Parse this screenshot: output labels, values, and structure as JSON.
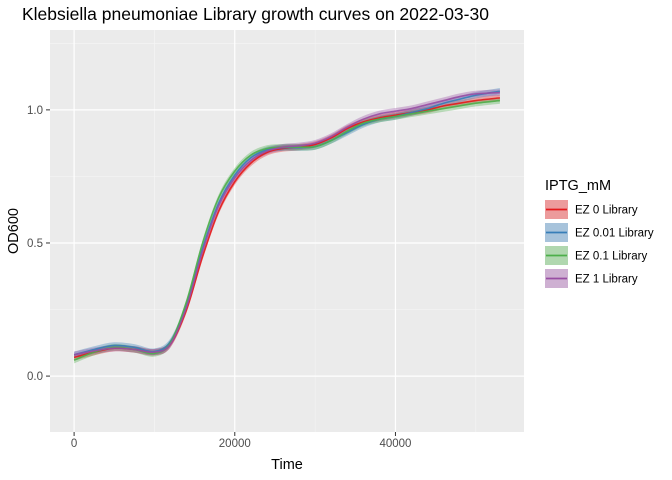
{
  "chart_data": {
    "type": "line",
    "title": "Klebsiella pneumoniae Library growth curves on 2022-03-30",
    "xlabel": "Time",
    "ylabel": "OD600",
    "xlim": [
      -3000,
      56000
    ],
    "ylim": [
      -0.21,
      1.3
    ],
    "x_ticks": [
      0,
      20000,
      40000
    ],
    "x_tick_labels": [
      "0",
      "20000",
      "40000"
    ],
    "y_ticks": [
      0.0,
      0.5,
      1.0
    ],
    "y_tick_labels": [
      "0.0",
      "0.5",
      "1.0"
    ],
    "grid": true,
    "legend": {
      "title": "IPTG_mM",
      "position": "right"
    },
    "series": [
      {
        "name": "EZ 0 Library",
        "color": "#e41a1c",
        "points": [
          [
            0,
            0.07
          ],
          [
            2500,
            0.09
          ],
          [
            5000,
            0.105
          ],
          [
            7500,
            0.1
          ],
          [
            10000,
            0.09
          ],
          [
            12000,
            0.12
          ],
          [
            14000,
            0.25
          ],
          [
            16000,
            0.45
          ],
          [
            18000,
            0.62
          ],
          [
            20000,
            0.73
          ],
          [
            22000,
            0.8
          ],
          [
            24000,
            0.84
          ],
          [
            26000,
            0.855
          ],
          [
            28000,
            0.86
          ],
          [
            30000,
            0.87
          ],
          [
            32000,
            0.895
          ],
          [
            34000,
            0.93
          ],
          [
            36000,
            0.955
          ],
          [
            38000,
            0.97
          ],
          [
            40000,
            0.98
          ],
          [
            42000,
            0.99
          ],
          [
            44000,
            1.0
          ],
          [
            46000,
            1.015
          ],
          [
            48000,
            1.025
          ],
          [
            50000,
            1.035
          ],
          [
            53000,
            1.045
          ]
        ]
      },
      {
        "name": "EZ 0.01 Library",
        "color": "#377eb8",
        "points": [
          [
            0,
            0.08
          ],
          [
            2500,
            0.1
          ],
          [
            5000,
            0.115
          ],
          [
            7500,
            0.108
          ],
          [
            10000,
            0.092
          ],
          [
            12000,
            0.13
          ],
          [
            14000,
            0.27
          ],
          [
            16000,
            0.48
          ],
          [
            18000,
            0.65
          ],
          [
            20000,
            0.755
          ],
          [
            22000,
            0.82
          ],
          [
            24000,
            0.85
          ],
          [
            26000,
            0.858
          ],
          [
            28000,
            0.858
          ],
          [
            30000,
            0.862
          ],
          [
            32000,
            0.885
          ],
          [
            34000,
            0.915
          ],
          [
            36000,
            0.945
          ],
          [
            38000,
            0.965
          ],
          [
            40000,
            0.975
          ],
          [
            42000,
            0.99
          ],
          [
            44000,
            1.005
          ],
          [
            46000,
            1.025
          ],
          [
            48000,
            1.04
          ],
          [
            50000,
            1.055
          ],
          [
            53000,
            1.07
          ]
        ]
      },
      {
        "name": "EZ 0.1 Library",
        "color": "#4daf4a",
        "points": [
          [
            0,
            0.06
          ],
          [
            2500,
            0.09
          ],
          [
            5000,
            0.108
          ],
          [
            7500,
            0.1
          ],
          [
            10000,
            0.085
          ],
          [
            12000,
            0.125
          ],
          [
            14000,
            0.28
          ],
          [
            16000,
            0.5
          ],
          [
            18000,
            0.67
          ],
          [
            20000,
            0.77
          ],
          [
            22000,
            0.83
          ],
          [
            24000,
            0.855
          ],
          [
            26000,
            0.86
          ],
          [
            28000,
            0.86
          ],
          [
            30000,
            0.862
          ],
          [
            32000,
            0.885
          ],
          [
            34000,
            0.92
          ],
          [
            36000,
            0.95
          ],
          [
            38000,
            0.965
          ],
          [
            40000,
            0.975
          ],
          [
            42000,
            0.985
          ],
          [
            44000,
            0.995
          ],
          [
            46000,
            1.005
          ],
          [
            48000,
            1.015
          ],
          [
            50000,
            1.025
          ],
          [
            53000,
            1.035
          ]
        ]
      },
      {
        "name": "EZ 1 Library",
        "color": "#984ea3",
        "points": [
          [
            0,
            0.08
          ],
          [
            2500,
            0.095
          ],
          [
            5000,
            0.105
          ],
          [
            7500,
            0.1
          ],
          [
            10000,
            0.09
          ],
          [
            12000,
            0.12
          ],
          [
            14000,
            0.26
          ],
          [
            16000,
            0.47
          ],
          [
            18000,
            0.64
          ],
          [
            20000,
            0.745
          ],
          [
            22000,
            0.81
          ],
          [
            24000,
            0.845
          ],
          [
            26000,
            0.86
          ],
          [
            28000,
            0.865
          ],
          [
            30000,
            0.875
          ],
          [
            32000,
            0.9
          ],
          [
            34000,
            0.935
          ],
          [
            36000,
            0.965
          ],
          [
            38000,
            0.985
          ],
          [
            40000,
            0.995
          ],
          [
            42000,
            1.005
          ],
          [
            44000,
            1.02
          ],
          [
            46000,
            1.035
          ],
          [
            48000,
            1.05
          ],
          [
            50000,
            1.06
          ],
          [
            53000,
            1.065
          ]
        ]
      }
    ]
  }
}
